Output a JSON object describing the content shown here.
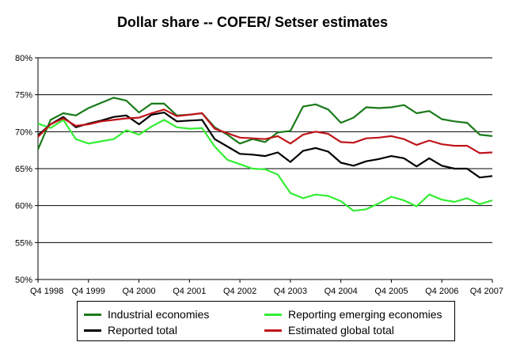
{
  "chart_data": {
    "type": "line",
    "title": "Dollar share -- COFER/ Setser estimates",
    "xlabel": "",
    "ylabel": "",
    "x_tick_labels": [
      "Q4 1998",
      "Q4 1999",
      "Q4 2000",
      "Q4 2001",
      "Q4 2002",
      "Q4 2003",
      "Q4 2004",
      "Q4 2005",
      "Q4 2006",
      "Q4 2007"
    ],
    "x_range": [
      "Q4 1998",
      "Q4 2007"
    ],
    "ylim": [
      50,
      80
    ],
    "y_ticks": [
      "50%",
      "55%",
      "60%",
      "65%",
      "70%",
      "75%",
      "80%"
    ],
    "y_tick_values": [
      50,
      55,
      60,
      65,
      70,
      75,
      80
    ],
    "grid": "horizontal major",
    "legend_position": "bottom",
    "series": [
      {
        "name": "Industrial economies",
        "color": "#1a7a1a",
        "values": [
          67.6,
          71.6,
          72.5,
          72.2,
          73.2,
          73.9,
          74.6,
          74.2,
          72.6,
          73.8,
          73.8,
          72.2,
          72.3,
          72.5,
          70.6,
          69.6,
          68.4,
          69.0,
          68.6,
          69.9,
          70.1,
          73.4,
          73.7,
          73.0,
          71.2,
          71.9,
          73.3,
          73.2,
          73.3,
          73.6,
          72.5,
          72.8,
          71.7,
          71.4,
          71.2,
          69.6,
          69.4
        ]
      },
      {
        "name": "Reporting emerging economies",
        "color": "#33ee33",
        "values": [
          71.1,
          70.5,
          71.6,
          69.0,
          68.4,
          68.7,
          69.0,
          70.2,
          69.6,
          70.7,
          71.6,
          70.6,
          70.4,
          70.5,
          68.0,
          66.2,
          65.6,
          65.0,
          64.9,
          64.2,
          61.7,
          61.0,
          61.5,
          61.3,
          60.6,
          59.3,
          59.5,
          60.3,
          61.2,
          60.7,
          59.9,
          61.5,
          60.8,
          60.5,
          61.0,
          60.2,
          60.7
        ]
      },
      {
        "name": "Reported total",
        "color": "#000000",
        "values": [
          69.5,
          71.0,
          72.0,
          70.6,
          71.1,
          71.5,
          72.0,
          72.2,
          71.0,
          72.3,
          72.6,
          71.4,
          71.5,
          71.6,
          69.0,
          68.0,
          67.0,
          66.9,
          66.7,
          67.2,
          65.9,
          67.4,
          67.8,
          67.3,
          65.8,
          65.4,
          66.0,
          66.3,
          66.7,
          66.4,
          65.3,
          66.4,
          65.4,
          65.0,
          65.0,
          63.8,
          64.0
        ]
      },
      {
        "name": "Estimated global total",
        "color": "#c0151a",
        "values": [
          69.3,
          71.0,
          71.8,
          70.8,
          71.0,
          71.4,
          71.6,
          71.8,
          71.9,
          72.5,
          73.0,
          72.1,
          72.3,
          72.5,
          70.4,
          69.8,
          69.2,
          69.1,
          69.0,
          69.4,
          68.4,
          69.6,
          70.0,
          69.7,
          68.6,
          68.5,
          69.1,
          69.2,
          69.4,
          69.0,
          68.2,
          68.8,
          68.3,
          68.1,
          68.1,
          67.1,
          67.2
        ]
      }
    ]
  }
}
